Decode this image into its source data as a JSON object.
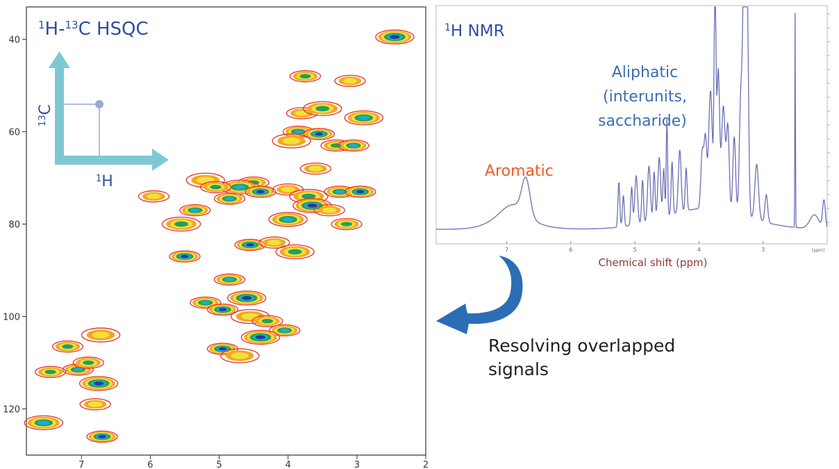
{
  "hsqc": {
    "title_parts": [
      "1",
      "H-",
      "13",
      "C HSQC"
    ],
    "axis_1h": {
      "sup": "1",
      "label": "H"
    },
    "axis_13c": {
      "sup": "13",
      "label": "C"
    },
    "x_ticks": [
      "7",
      "6",
      "5",
      "4",
      "3",
      "2"
    ],
    "y_ticks": [
      "40",
      "60",
      "80",
      "100",
      "120"
    ],
    "x_range_ppm": [
      7.8,
      2.0
    ],
    "y_range_ppm": [
      33,
      130
    ],
    "contour_colors": [
      "#e83a2c",
      "#f4a623",
      "#f2e03a",
      "#22a05a",
      "#24a9c9",
      "#1f3d9c",
      "#ffffff"
    ],
    "peaks": [
      {
        "x": 6.72,
        "y": 104
      },
      {
        "x": 7.2,
        "y": 106.5
      },
      {
        "x": 7.05,
        "y": 111.5
      },
      {
        "x": 6.75,
        "y": 114.5
      },
      {
        "x": 6.8,
        "y": 119
      },
      {
        "x": 7.45,
        "y": 112
      },
      {
        "x": 7.55,
        "y": 123
      },
      {
        "x": 6.7,
        "y": 126
      },
      {
        "x": 3.8,
        "y": 56
      },
      {
        "x": 3.5,
        "y": 55
      },
      {
        "x": 3.85,
        "y": 60
      },
      {
        "x": 3.55,
        "y": 60.5
      },
      {
        "x": 3.95,
        "y": 62
      },
      {
        "x": 3.3,
        "y": 63
      },
      {
        "x": 3.05,
        "y": 63
      },
      {
        "x": 2.45,
        "y": 39.5
      },
      {
        "x": 3.6,
        "y": 68
      },
      {
        "x": 4.5,
        "y": 71
      },
      {
        "x": 4.7,
        "y": 72
      },
      {
        "x": 4.4,
        "y": 73
      },
      {
        "x": 4.0,
        "y": 72.5
      },
      {
        "x": 3.7,
        "y": 74
      },
      {
        "x": 3.25,
        "y": 73
      },
      {
        "x": 2.95,
        "y": 73
      },
      {
        "x": 5.2,
        "y": 70.5
      },
      {
        "x": 5.05,
        "y": 72
      },
      {
        "x": 4.85,
        "y": 74.5
      },
      {
        "x": 3.65,
        "y": 76
      },
      {
        "x": 3.4,
        "y": 77
      },
      {
        "x": 3.15,
        "y": 80
      },
      {
        "x": 4.0,
        "y": 79
      },
      {
        "x": 4.55,
        "y": 84.5
      },
      {
        "x": 4.2,
        "y": 84
      },
      {
        "x": 3.9,
        "y": 86
      },
      {
        "x": 5.2,
        "y": 97
      },
      {
        "x": 4.95,
        "y": 98.5
      },
      {
        "x": 4.55,
        "y": 100
      },
      {
        "x": 4.3,
        "y": 101
      },
      {
        "x": 4.05,
        "y": 103
      },
      {
        "x": 4.6,
        "y": 96
      },
      {
        "x": 3.1,
        "y": 49
      },
      {
        "x": 3.75,
        "y": 48
      },
      {
        "x": 2.9,
        "y": 57
      },
      {
        "x": 5.5,
        "y": 87
      },
      {
        "x": 5.95,
        "y": 74
      },
      {
        "x": 5.55,
        "y": 80
      },
      {
        "x": 4.85,
        "y": 92
      },
      {
        "x": 4.95,
        "y": 107
      },
      {
        "x": 4.7,
        "y": 108.5
      },
      {
        "x": 6.9,
        "y": 110
      },
      {
        "x": 5.35,
        "y": 77
      },
      {
        "x": 4.4,
        "y": 104.5
      }
    ]
  },
  "nmr": {
    "title_parts": [
      "1",
      "H NMR"
    ],
    "label_aromatic": "Aromatic",
    "label_aliphatic": [
      "Aliphatic",
      "(interunits,",
      "saccharide)"
    ],
    "xlabel": "Chemical shift (ppm)",
    "x_ticks": [
      "7",
      "6",
      "5",
      "4",
      "3"
    ],
    "x_unit_tick": "[ppm]",
    "colors": {
      "trace": "#6b6fb2",
      "aromatic": "#f15a24",
      "aliphatic": "#3b6db5",
      "xlabel": "#8b3a3a"
    }
  },
  "arrow": {
    "label_lines": [
      "Resolving overlapped",
      "signals"
    ],
    "color": "#2b6eb5"
  }
}
